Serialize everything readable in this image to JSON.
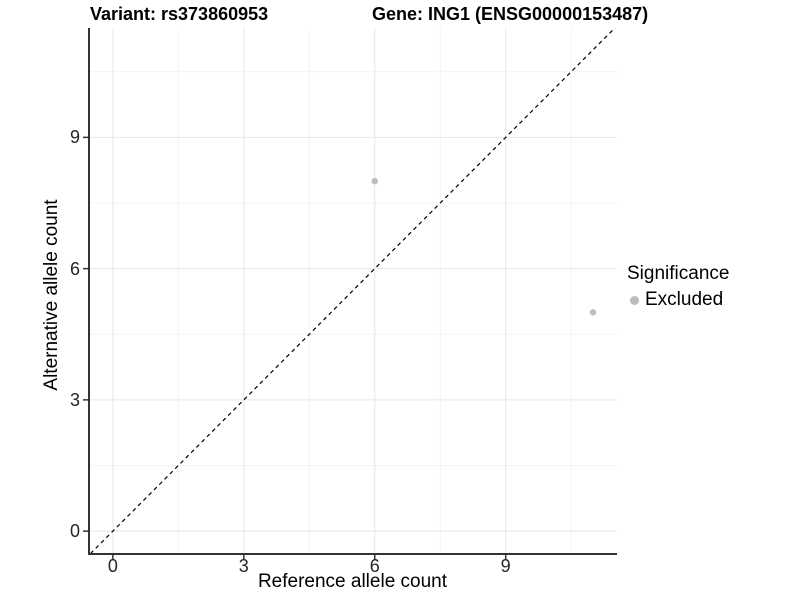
{
  "chart_data": {
    "type": "scatter",
    "titles": {
      "left": "Variant: rs373860953",
      "right": "Gene: ING1 (ENSG00000153487)"
    },
    "xlabel": "Reference allele count",
    "ylabel": "Alternative allele count",
    "xticks": [
      0,
      3,
      6,
      9
    ],
    "yticks": [
      0,
      3,
      6,
      9
    ],
    "xlim": [
      -0.57,
      11.55
    ],
    "ylim": [
      -0.5,
      11.5
    ],
    "grid": "major+minor",
    "minor_gridlines": [
      1.5,
      4.5,
      7.5,
      10.5
    ],
    "identity_line": {
      "equation": "y = x",
      "style": "dashed",
      "color": "#000000"
    },
    "series": [
      {
        "name": "Excluded",
        "color": "#bdbdbd",
        "points": [
          {
            "x": 6,
            "y": 8
          },
          {
            "x": 11,
            "y": 5
          }
        ]
      }
    ],
    "legend": {
      "title": "Significance",
      "position": "right",
      "entries": [
        {
          "label": "Excluded",
          "color": "#bdbdbd"
        }
      ]
    }
  },
  "colors": {
    "background": "#ffffff",
    "axis_line": "#333333",
    "tick_mark": "#333333",
    "tick_label": "#262626",
    "grid_major": "#e7e7e7",
    "grid_minor": "#f4f4f4",
    "reference_line": "#000000",
    "point": "#bdbdbd"
  }
}
